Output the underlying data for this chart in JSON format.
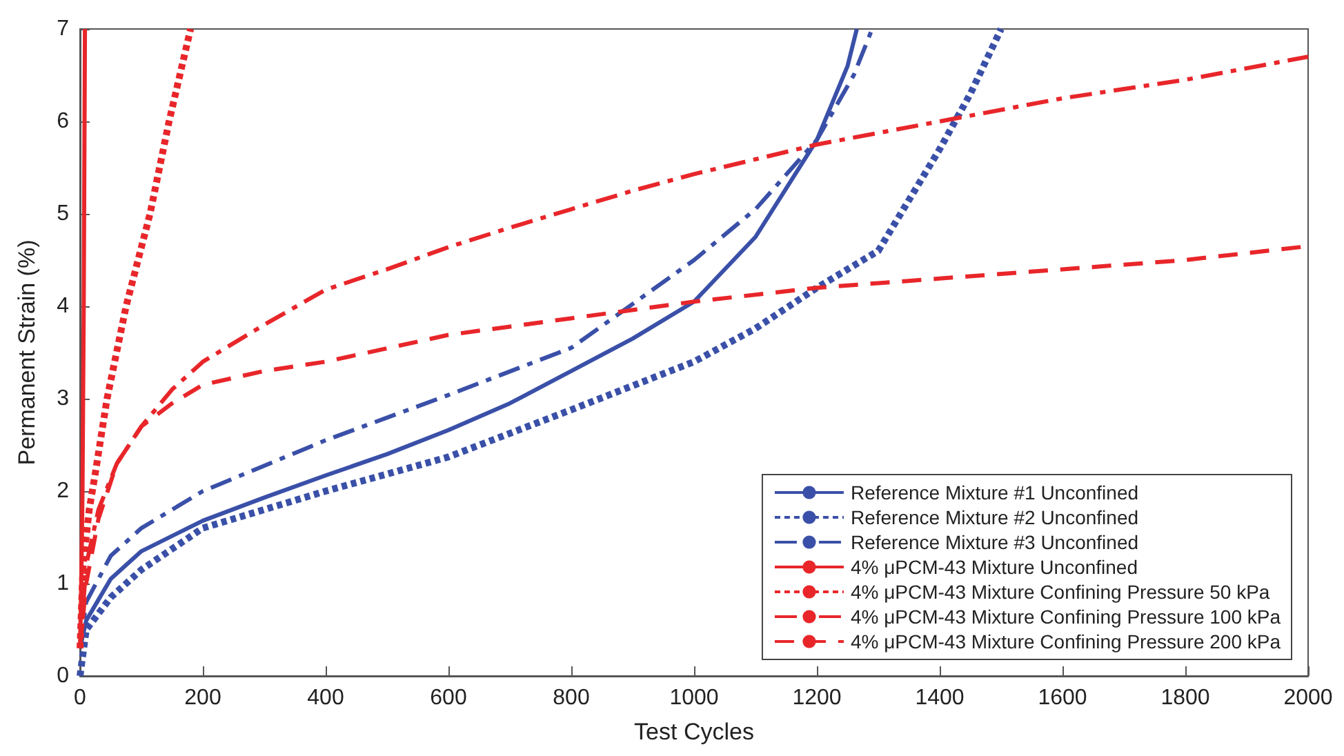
{
  "chart_data": {
    "type": "line",
    "xlabel": "Test Cycles",
    "ylabel": "Permanent Strain (%)",
    "xlim": [
      0,
      2000
    ],
    "ylim": [
      0,
      7
    ],
    "xticks": [
      0,
      200,
      400,
      600,
      800,
      1000,
      1200,
      1400,
      1600,
      1800,
      2000
    ],
    "yticks": [
      0,
      1,
      2,
      3,
      4,
      5,
      6,
      7
    ],
    "grid": false,
    "legend": "bottom right",
    "marker": "none",
    "series": [
      {
        "name": "Reference Mixture #1 Unconfined",
        "color": "#3a50a8",
        "line_style": "solid",
        "x": [
          0,
          10,
          50,
          100,
          200,
          300,
          400,
          500,
          600,
          700,
          800,
          900,
          1000,
          1100,
          1200,
          1250,
          1265
        ],
        "values": [
          0.3,
          0.6,
          1.05,
          1.35,
          1.68,
          1.93,
          2.17,
          2.4,
          2.66,
          2.95,
          3.3,
          3.65,
          4.05,
          4.75,
          5.8,
          6.6,
          7
        ]
      },
      {
        "name": "Reference Mixture #2 Unconfined",
        "color": "#3a50a8",
        "line_style": "dotted",
        "x": [
          0,
          10,
          50,
          100,
          200,
          400,
          600,
          800,
          1000,
          1100,
          1200,
          1300,
          1400,
          1450,
          1500
        ],
        "values": [
          0,
          0.5,
          0.85,
          1.15,
          1.6,
          2.0,
          2.37,
          2.88,
          3.4,
          3.76,
          4.2,
          4.6,
          5.7,
          6.3,
          7
        ]
      },
      {
        "name": "Reference Mixture #3 Unconfined",
        "color": "#3a50a8",
        "line_style": "dashdot",
        "x": [
          0,
          10,
          50,
          100,
          200,
          400,
          600,
          800,
          1000,
          1100,
          1200,
          1260,
          1290
        ],
        "values": [
          0.3,
          0.8,
          1.3,
          1.6,
          2.0,
          2.55,
          3.04,
          3.55,
          4.5,
          5.05,
          5.8,
          6.5,
          7
        ]
      },
      {
        "name": "4% μPCM-43 Mixture Unconfined",
        "color": "#e8262a",
        "line_style": "solid",
        "x": [
          0,
          2,
          4,
          6,
          8
        ],
        "values": [
          0.3,
          1.0,
          2.0,
          4.0,
          7
        ]
      },
      {
        "name": "4% μPCM-43 Mixture Confining Pressure 50 kPa",
        "color": "#e8262a",
        "line_style": "dotted",
        "x": [
          0,
          5,
          15,
          25,
          44,
          75,
          114,
          145,
          180
        ],
        "values": [
          0.3,
          1.2,
          1.8,
          2.2,
          3,
          4,
          5,
          6,
          7
        ]
      },
      {
        "name": "4% μPCM-43 Mixture Confining Pressure 100 kPa",
        "color": "#e8262a",
        "line_style": "dashdot",
        "x": [
          0,
          10,
          30,
          60,
          100,
          150,
          200,
          300,
          400,
          500,
          600,
          700,
          800,
          900,
          1000,
          1200,
          1400,
          1600,
          1800,
          2000
        ],
        "values": [
          0.3,
          1.2,
          1.8,
          2.3,
          2.7,
          3.1,
          3.4,
          3.8,
          4.18,
          4.4,
          4.64,
          4.85,
          5.05,
          5.25,
          5.43,
          5.75,
          6.0,
          6.25,
          6.45,
          6.7
        ]
      },
      {
        "name": "4% μPCM-43 Mixture Confining Pressure 200 kPa",
        "color": "#e8262a",
        "line_style": "dashed",
        "x": [
          0,
          10,
          30,
          60,
          100,
          150,
          200,
          300,
          400,
          600,
          800,
          1000,
          1200,
          1400,
          1600,
          1800,
          2000
        ],
        "values": [
          0.3,
          1.0,
          1.7,
          2.3,
          2.7,
          2.95,
          3.15,
          3.3,
          3.4,
          3.69,
          3.87,
          4.05,
          4.2,
          4.3,
          4.4,
          4.5,
          4.65
        ]
      }
    ]
  }
}
